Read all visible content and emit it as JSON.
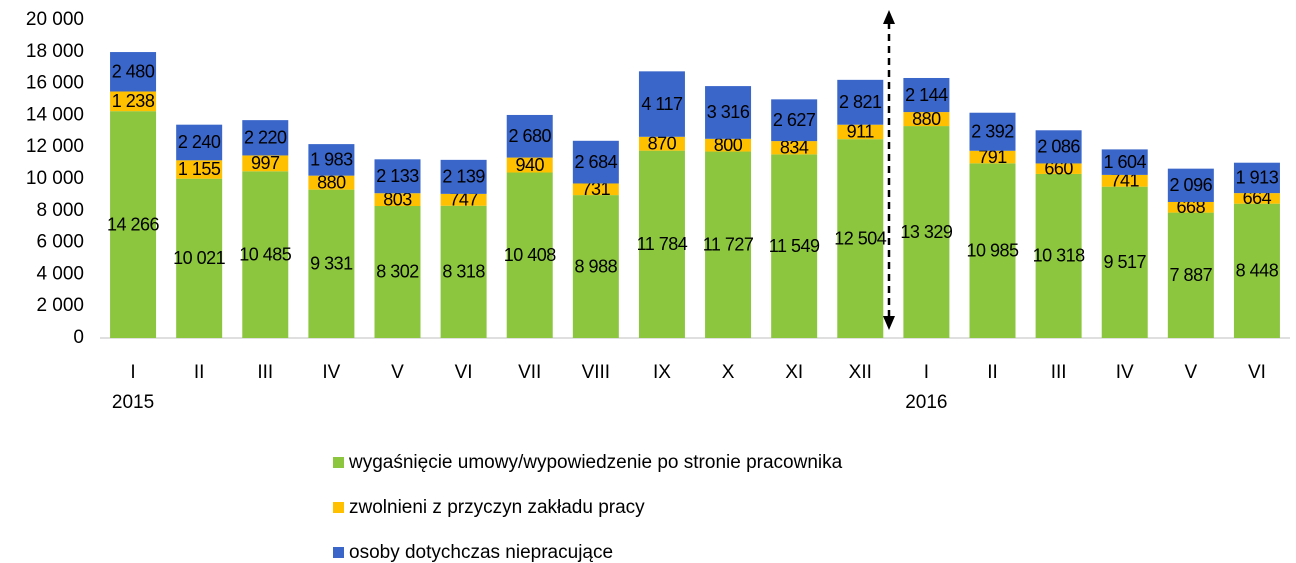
{
  "chart_data": {
    "type": "stacked_bar",
    "categories": [
      "I",
      "II",
      "III",
      "IV",
      "V",
      "VI",
      "VII",
      "VIII",
      "IX",
      "X",
      "XI",
      "XII",
      "I",
      "II",
      "III",
      "IV",
      "V",
      "VI"
    ],
    "year_labels": [
      "2015",
      null,
      null,
      null,
      null,
      null,
      null,
      null,
      null,
      null,
      null,
      null,
      "2016",
      null,
      null,
      null,
      null,
      null
    ],
    "series": [
      {
        "name": "wygaśnięcie umowy/wypowiedzenie po stronie pracownika",
        "color": "#8cc63f",
        "values": [
          14266,
          10021,
          10485,
          9331,
          8302,
          8318,
          10408,
          8988,
          11784,
          11727,
          11549,
          12504,
          13329,
          10985,
          10318,
          9517,
          7887,
          8448
        ],
        "value_labels": [
          "14 266",
          "10 021",
          "10 485",
          "9 331",
          "8 302",
          "8 318",
          "10 408",
          "8 988",
          "11 784",
          "11 727",
          "11 549",
          "12 504",
          "13 329",
          "10 985",
          "10 318",
          "9 517",
          "7 887",
          "8 448"
        ]
      },
      {
        "name": "zwolnieni z przyczyn zakładu pracy",
        "color": "#ffc000",
        "values": [
          1238,
          1155,
          997,
          880,
          803,
          747,
          940,
          731,
          870,
          800,
          834,
          911,
          880,
          791,
          660,
          741,
          668,
          664
        ],
        "value_labels": [
          "1 238",
          "1 155",
          "997",
          "880",
          "803",
          "747",
          "940",
          "731",
          "870",
          "800",
          "834",
          "911",
          "880",
          "791",
          "660",
          "741",
          "668",
          "664"
        ]
      },
      {
        "name": "osoby dotychczas niepracujące",
        "color": "#3a66c9",
        "values": [
          2480,
          2240,
          2220,
          1983,
          2133,
          2139,
          2680,
          2684,
          4117,
          3316,
          2627,
          2821,
          2144,
          2392,
          2086,
          1604,
          2096,
          1913
        ],
        "value_labels": [
          "2 480",
          "2 240",
          "2 220",
          "1 983",
          "2 133",
          "2 139",
          "2 680",
          "2 684",
          "4 117",
          "3 316",
          "2 627",
          "2 821",
          "2 144",
          "2 392",
          "2 086",
          "1 604",
          "2 096",
          "1 913"
        ]
      }
    ],
    "ylim": [
      0,
      20000
    ],
    "yticks": [
      0,
      {
        "value": 2000,
        "label": "2 000"
      },
      {
        "value": 4000,
        "label": "4 000"
      },
      {
        "value": 6000,
        "label": "6 000"
      },
      {
        "value": 8000,
        "label": "8 000"
      },
      {
        "value": 10000,
        "label": "10 000"
      },
      {
        "value": 12000,
        "label": "12 000"
      },
      {
        "value": 14000,
        "label": "14 000"
      },
      {
        "value": 16000,
        "label": "16 000"
      },
      {
        "value": 18000,
        "label": "18 000"
      },
      {
        "value": 20000,
        "label": "20 000"
      }
    ],
    "grid": false,
    "legend": "bottom"
  }
}
